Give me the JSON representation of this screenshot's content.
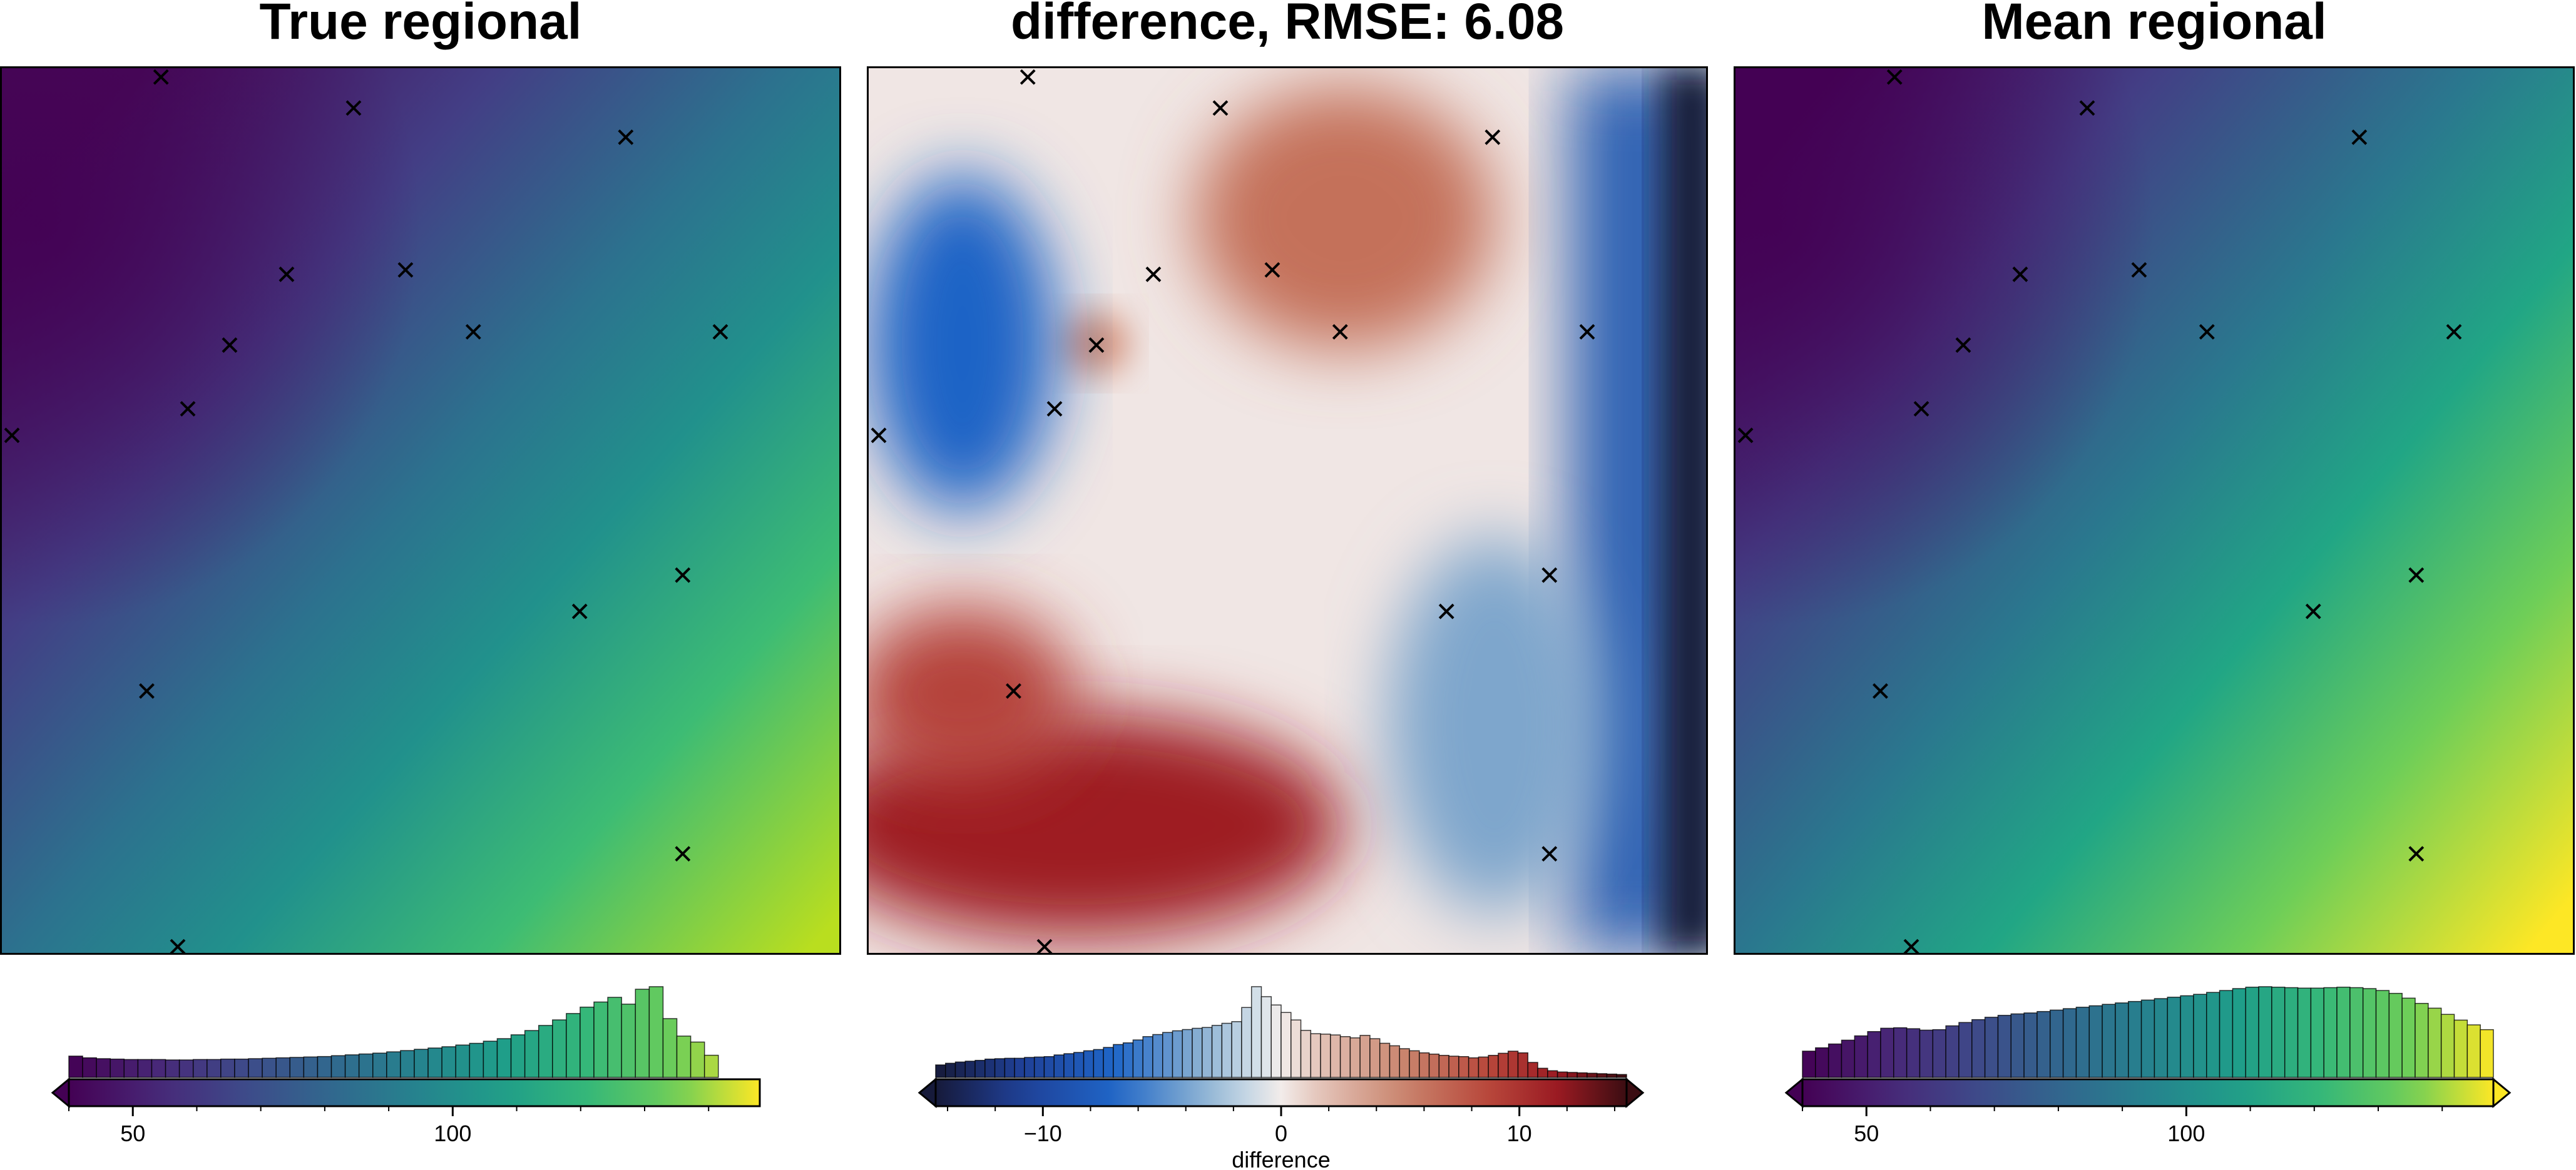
{
  "panels": [
    {
      "title": "True regional",
      "colormap": "viridis",
      "colorbar": {
        "range": [
          40,
          148
        ],
        "ticks": [
          50,
          100
        ],
        "tick_labels": [
          "50",
          "100"
        ],
        "label": "",
        "extend_low": true,
        "extend_high": false
      }
    },
    {
      "title": "difference, RMSE: 6.08",
      "colormap": "balance",
      "colorbar": {
        "range": [
          -14.5,
          14.5
        ],
        "ticks": [
          -10,
          0,
          10
        ],
        "tick_labels": [
          "−10",
          "0",
          "10"
        ],
        "label": "difference",
        "extend_low": true,
        "extend_high": true
      }
    },
    {
      "title": "Mean regional",
      "colormap": "viridis",
      "colorbar": {
        "range": [
          40,
          148
        ],
        "ticks": [
          50,
          100
        ],
        "tick_labels": [
          "50",
          "100"
        ],
        "label": "",
        "extend_low": true,
        "extend_high": true
      }
    }
  ],
  "chart_data": [
    {
      "type": "heatmap",
      "title": "True regional",
      "colorbar_range": [
        40,
        148
      ],
      "z_extent": [
        40,
        142
      ],
      "histogram": [
        5,
        4.6,
        4.4,
        4.3,
        4.2,
        4.2,
        4.2,
        4.1,
        4.1,
        4.2,
        4.2,
        4.3,
        4.3,
        4.4,
        4.5,
        4.6,
        4.7,
        4.8,
        4.9,
        5.1,
        5.3,
        5.5,
        5.7,
        6,
        6.3,
        6.6,
        6.9,
        7.2,
        7.6,
        8,
        8.5,
        9.1,
        10,
        11,
        12.2,
        13.5,
        15,
        16.5,
        17.7,
        18.8,
        17.2,
        20.7,
        21.3,
        13.8,
        9.7,
        8.3,
        5.2,
        0,
        0,
        0
      ],
      "points": [
        {
          "x": 0.19,
          "y": 0.01
        },
        {
          "x": 0.42,
          "y": 0.045
        },
        {
          "x": 0.745,
          "y": 0.078
        },
        {
          "x": 0.34,
          "y": 0.233
        },
        {
          "x": 0.482,
          "y": 0.228
        },
        {
          "x": 0.272,
          "y": 0.313
        },
        {
          "x": 0.563,
          "y": 0.298
        },
        {
          "x": 0.858,
          "y": 0.298
        },
        {
          "x": 0.222,
          "y": 0.385
        },
        {
          "x": 0.012,
          "y": 0.415
        },
        {
          "x": 0.813,
          "y": 0.573
        },
        {
          "x": 0.69,
          "y": 0.614
        },
        {
          "x": 0.173,
          "y": 0.704
        },
        {
          "x": 0.813,
          "y": 0.888
        },
        {
          "x": 0.21,
          "y": 0.993
        }
      ]
    },
    {
      "type": "heatmap",
      "title": "difference, RMSE: 6.08",
      "colorbar_range": [
        -14.5,
        14.5
      ],
      "rmse": 6.08,
      "histogram": [
        3,
        3.4,
        3.7,
        3.9,
        4.1,
        4.4,
        4.5,
        4.6,
        4.6,
        4.8,
        4.9,
        5,
        5.4,
        5.7,
        6,
        6.4,
        6.7,
        7.2,
        7.9,
        8.3,
        9,
        9.8,
        10.3,
        10.8,
        11.2,
        11.5,
        11.8,
        12,
        12.5,
        13,
        13.4,
        16.8,
        21.8,
        19.4,
        17.4,
        15.6,
        13.8,
        11.3,
        10.5,
        10.4,
        10.2,
        9.8,
        9.5,
        10.1,
        9.3,
        8.2,
        7.6,
        6.9,
        6.4,
        5.9,
        5.6,
        5.3,
        5.1,
        5,
        4.7,
        4.9,
        5.3,
        5.8,
        6.3,
        5.9,
        3.6,
        2.2,
        1.6,
        1.3,
        1.2,
        1.1,
        1,
        0.9,
        0.8,
        0.7
      ],
      "points": [
        {
          "x": 0.19,
          "y": 0.01
        },
        {
          "x": 0.42,
          "y": 0.045
        },
        {
          "x": 0.745,
          "y": 0.078
        },
        {
          "x": 0.34,
          "y": 0.233
        },
        {
          "x": 0.482,
          "y": 0.228
        },
        {
          "x": 0.272,
          "y": 0.313
        },
        {
          "x": 0.563,
          "y": 0.298
        },
        {
          "x": 0.858,
          "y": 0.298
        },
        {
          "x": 0.222,
          "y": 0.385
        },
        {
          "x": 0.012,
          "y": 0.415
        },
        {
          "x": 0.813,
          "y": 0.573
        },
        {
          "x": 0.69,
          "y": 0.614
        },
        {
          "x": 0.173,
          "y": 0.704
        },
        {
          "x": 0.813,
          "y": 0.888
        },
        {
          "x": 0.21,
          "y": 0.993
        }
      ]
    },
    {
      "type": "heatmap",
      "title": "Mean regional",
      "colorbar_range": [
        40,
        148
      ],
      "z_extent": [
        40,
        148
      ],
      "histogram": [
        5.5,
        6.2,
        7,
        7.8,
        8.7,
        9.6,
        10.3,
        10.4,
        10.2,
        9.9,
        10,
        10.8,
        11.5,
        12.1,
        12.6,
        13,
        13.3,
        13.5,
        13.8,
        14.1,
        14.4,
        14.7,
        15,
        15.3,
        15.6,
        15.9,
        16.2,
        16.5,
        16.8,
        17.1,
        17.4,
        17.8,
        18.2,
        18.6,
        18.9,
        19,
        18.9,
        18.8,
        18.7,
        18.7,
        18.8,
        18.9,
        18.8,
        18.6,
        18.2,
        17.6,
        16.6,
        15.5,
        14.5,
        13.2,
        12,
        11,
        10
      ]
    }
  ]
}
